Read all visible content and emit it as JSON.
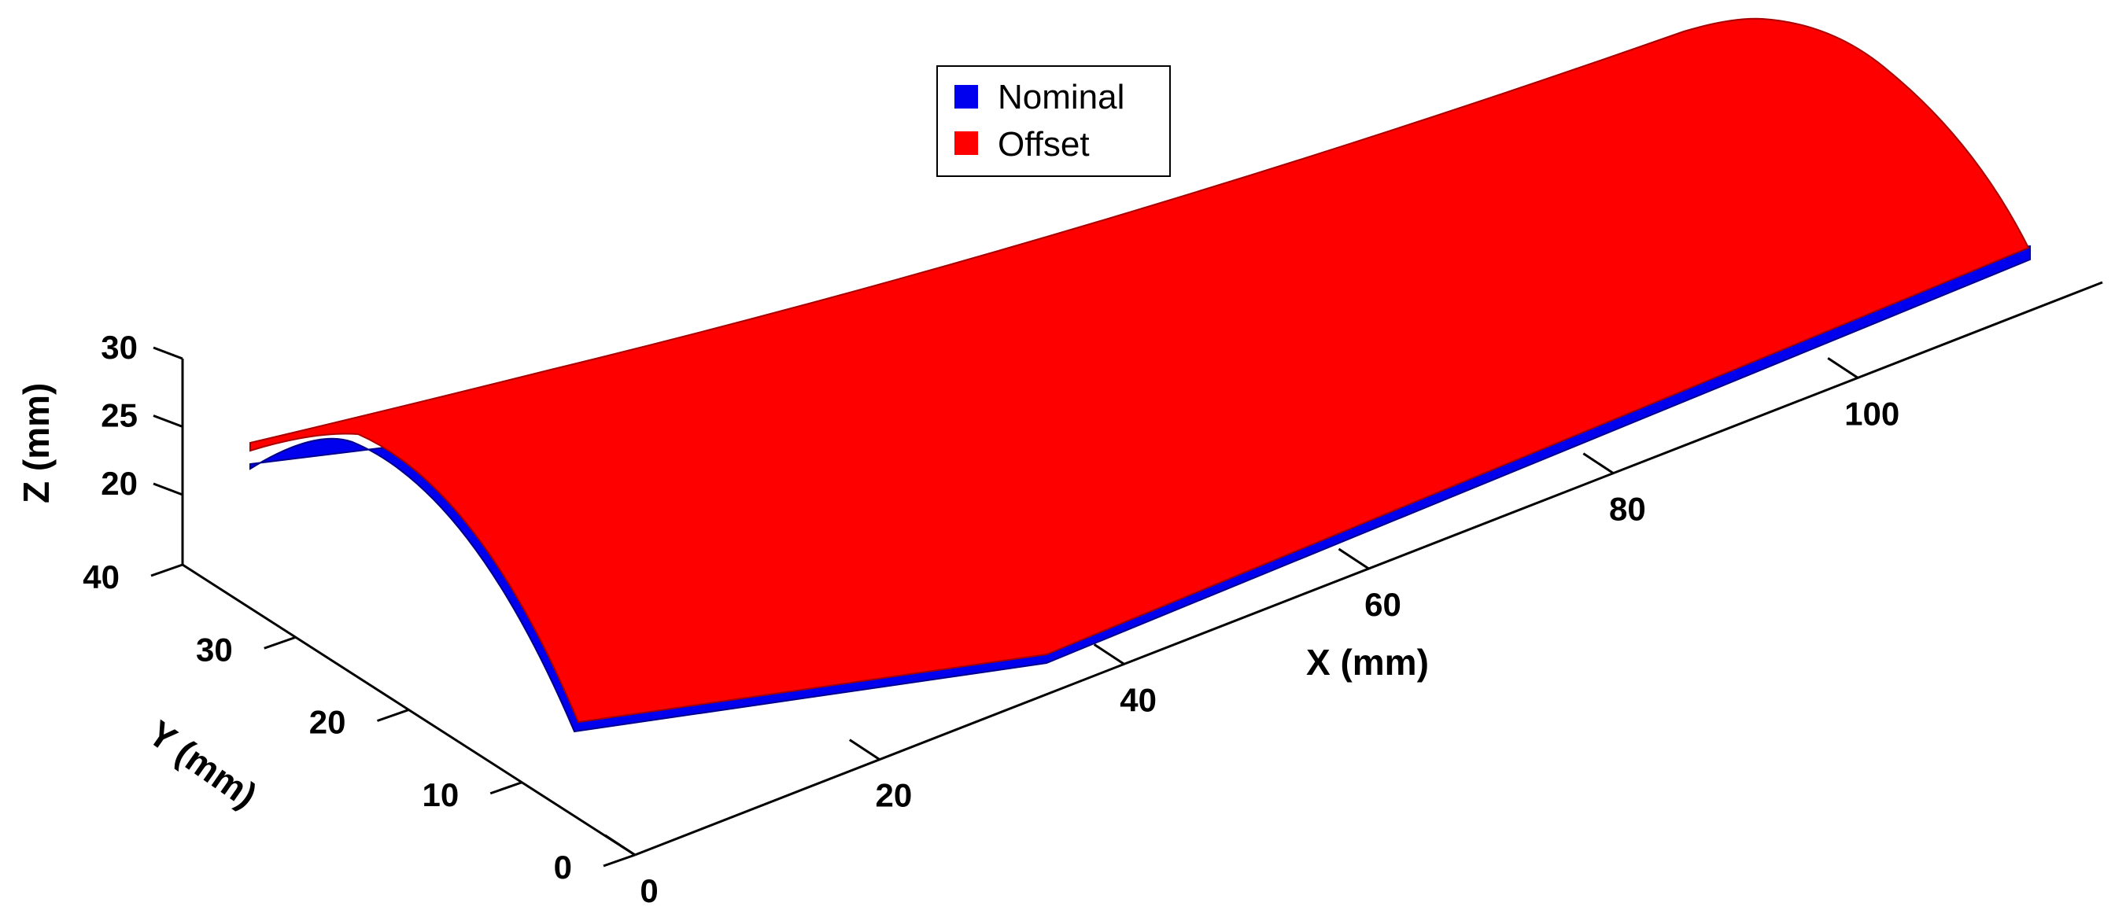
{
  "chart_data": {
    "type": "surface3d",
    "title": "",
    "xlabel": "X (mm)",
    "ylabel": "Y (mm)",
    "zlabel": "Z (mm)",
    "x_ticks": [
      "0",
      "20",
      "40",
      "60",
      "80",
      "100"
    ],
    "y_ticks": [
      "0",
      "10",
      "20",
      "30",
      "40"
    ],
    "z_ticks": [
      "20",
      "25",
      "30"
    ],
    "xlim": [
      0,
      120
    ],
    "ylim": [
      0,
      40
    ],
    "zlim": [
      20,
      30
    ],
    "grid": false,
    "legend_position": "top-center",
    "series": [
      {
        "name": "Nominal",
        "color": "#0000ee"
      },
      {
        "name": "Offset",
        "color": "#ff0000"
      }
    ]
  }
}
